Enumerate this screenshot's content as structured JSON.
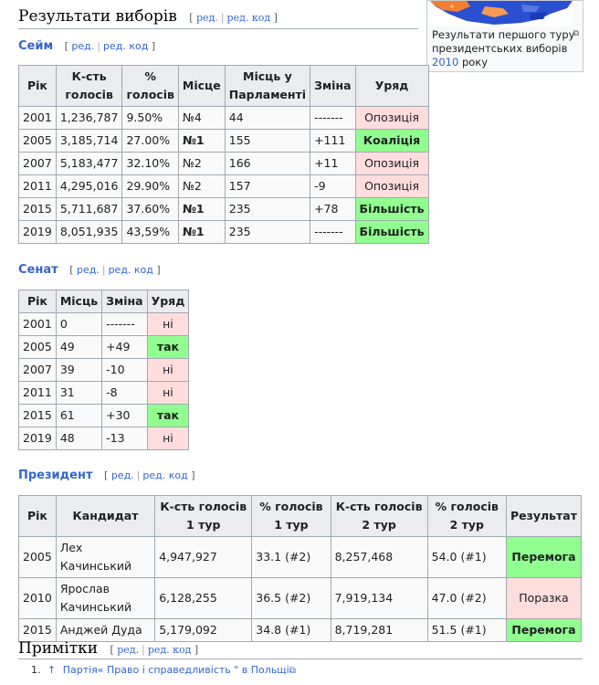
{
  "results": {
    "title": "Результати виборів",
    "edit": "ред.",
    "edit_code": "ред. код"
  },
  "thumb": {
    "caption": "Результати першого туру президентських виборів",
    "year_link": "2010",
    "caption_end": "року",
    "colors": {
      "orange": "#f08030",
      "blue": "#2a4fd0"
    }
  },
  "sejm": {
    "title": "Сейм",
    "edit": "ред.",
    "edit_code": "ред. код",
    "headers": [
      "Рік",
      "К-сть голосів",
      "% голосів",
      "Місце",
      "Місць у Парламенті",
      "Зміна",
      "Уряд"
    ],
    "rows": [
      [
        "2001",
        "1,236,787",
        "9.50%",
        "№4",
        "44",
        "-------",
        "Опозиція"
      ],
      [
        "2005",
        "3,185,714",
        "27.00%",
        "№1",
        "155",
        "+111",
        "Коаліція"
      ],
      [
        "2007",
        "5,183,477",
        "32.10%",
        "№2",
        "166",
        "+11",
        "Опозиція"
      ],
      [
        "2011",
        "4,295,016",
        "29.90%",
        "№2",
        "157",
        "-9",
        "Опозиція"
      ],
      [
        "2015",
        "5,711,687",
        "37.60%",
        "№1",
        "235",
        "+78",
        "Більшість"
      ],
      [
        "2019",
        "8,051,935",
        "43,59%",
        "№1",
        "235",
        "-------",
        "Більшість"
      ]
    ]
  },
  "senate": {
    "title": "Сенат",
    "edit": "ред.",
    "edit_code": "ред. код",
    "headers": [
      "Рік",
      "Місць",
      "Зміна",
      "Уряд"
    ],
    "rows": [
      [
        "2001",
        "0",
        "-------",
        "ні"
      ],
      [
        "2005",
        "49",
        "+49",
        "так"
      ],
      [
        "2007",
        "39",
        "-10",
        "ні"
      ],
      [
        "2011",
        "31",
        "-8",
        "ні"
      ],
      [
        "2015",
        "61",
        "+30",
        "так"
      ],
      [
        "2019",
        "48",
        "-13",
        "ні"
      ]
    ]
  },
  "president": {
    "title": "Президент",
    "edit": "ред.",
    "edit_code": "ред. код",
    "headers": [
      "Рік",
      "Кандидат",
      "К-сть голосів 1 тур",
      "% голосів 1 тур",
      "К-сть голосів 2 тур",
      "% голосів 2 тур",
      "Результат"
    ],
    "rows": [
      [
        "2005",
        "Лех Качинський",
        "4,947,927",
        "33.1 (#2)",
        "8,257,468",
        "54.0 (#1)",
        "Перемога"
      ],
      [
        "2010",
        "Ярослав Качинський",
        "6,128,255",
        "36.5 (#2)",
        "7,919,134",
        "47.0 (#2)",
        "Поразка"
      ],
      [
        "2015",
        "Анджей Дуда",
        "5,179,092",
        "34.8 (#1)",
        "8,719,281",
        "51.5 (#1)",
        "Перемога"
      ]
    ]
  },
  "notes": {
    "title": "Примітки",
    "edit": "ред.",
    "edit_code": "ред. код",
    "items": [
      "Партія« Право і справедливість \" в Польщі"
    ]
  }
}
